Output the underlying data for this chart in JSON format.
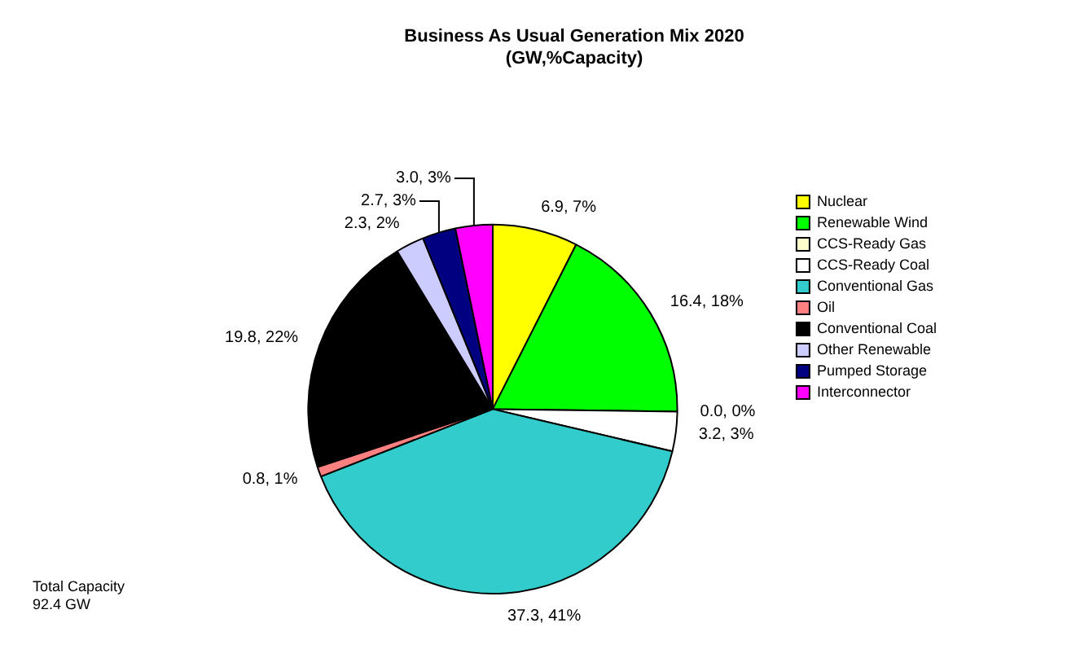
{
  "chart_data": {
    "type": "pie",
    "title": "Business As Usual Generation Mix 2020\n(GW,%Capacity)",
    "categories": [
      "Nuclear",
      "Renewable Wind",
      "CCS-Ready Gas",
      "CCS-Ready Coal",
      "Conventional Gas",
      "Oil",
      "Conventional Coal",
      "Other Renewable",
      "Pumped Storage",
      "Interconnector"
    ],
    "values": [
      6.9,
      16.4,
      0.0,
      3.2,
      37.3,
      0.8,
      19.8,
      2.3,
      2.7,
      3.0
    ],
    "colors": [
      "#ffff00",
      "#00ff00",
      "#ffffcc",
      "#ffffff",
      "#33cccc",
      "#ff8080",
      "#000000",
      "#ccccff",
      "#000080",
      "#ff00ff"
    ],
    "value_labels": [
      "6.9, 7%",
      "16.4, 18%",
      "0.0, 0%",
      "3.2, 3%",
      "37.3, 41%",
      "0.8, 1%",
      "19.8, 22%",
      "2.3, 2%",
      "2.7, 3%",
      "3.0, 3%"
    ],
    "legend": "right",
    "annotations": [
      "Total Capacity\n92.4 GW"
    ]
  }
}
